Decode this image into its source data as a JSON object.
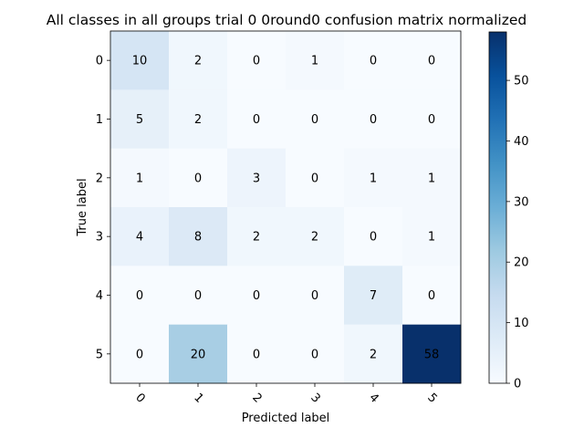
{
  "chart_data": {
    "type": "heatmap",
    "title": "All classes in all groups trial 0 0round0 confusion matrix normalized",
    "xlabel": "Predicted label",
    "ylabel": "True label",
    "x_tick_labels": [
      "0",
      "1",
      "2",
      "3",
      "4",
      "5"
    ],
    "y_tick_labels": [
      "0",
      "1",
      "2",
      "3",
      "4",
      "5"
    ],
    "matrix": [
      [
        10,
        2,
        0,
        1,
        0,
        0
      ],
      [
        5,
        2,
        0,
        0,
        0,
        0
      ],
      [
        1,
        0,
        3,
        0,
        1,
        1
      ],
      [
        4,
        8,
        2,
        2,
        0,
        1
      ],
      [
        0,
        0,
        0,
        0,
        7,
        0
      ],
      [
        0,
        20,
        0,
        0,
        2,
        58
      ]
    ],
    "colorscale": "Blues",
    "color_range": [
      0,
      58
    ],
    "colorbar_ticks": [
      "0",
      "10",
      "20",
      "30",
      "40",
      "50"
    ],
    "colorbar_tick_values": [
      0,
      10,
      20,
      30,
      40,
      50
    ],
    "text_color_light": "#ffffff",
    "text_color_dark": "#000000",
    "grid": false
  }
}
